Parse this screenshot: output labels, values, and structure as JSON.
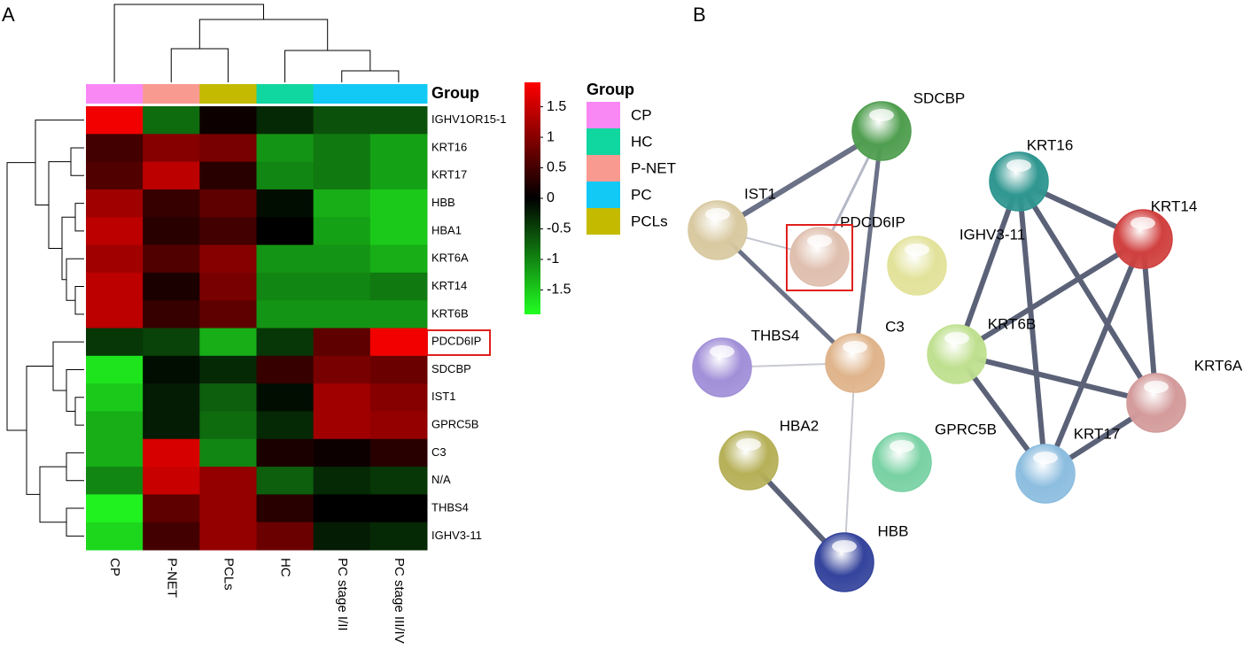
{
  "chart_data": {
    "type": "heatmap",
    "panel": "A",
    "columns": [
      "CP",
      "P-NET",
      "PCLs",
      "HC",
      "PC stage I/II",
      "PC stage III/IV"
    ],
    "column_group": [
      "CP",
      "P-NET",
      "PCLs",
      "HC",
      "PC",
      "PC"
    ],
    "rows": [
      "IGHV1OR15-1",
      "KRT16",
      "KRT17",
      "HBB",
      "HBA1",
      "KRT6A",
      "KRT14",
      "KRT6B",
      "PDCD6IP",
      "SDCBP",
      "IST1",
      "GPRC5B",
      "C3",
      "N/A",
      "THBS4",
      "IGHV3-11"
    ],
    "values": [
      [
        1.8,
        -0.8,
        0.1,
        -0.3,
        -0.6,
        -0.6
      ],
      [
        0.5,
        1.0,
        0.9,
        -1.1,
        -0.9,
        -1.2
      ],
      [
        0.6,
        1.4,
        0.3,
        -1.0,
        -0.9,
        -1.2
      ],
      [
        1.2,
        0.4,
        0.7,
        -0.1,
        -1.3,
        -1.5
      ],
      [
        1.4,
        0.3,
        0.5,
        0.0,
        -1.2,
        -1.5
      ],
      [
        1.2,
        0.6,
        1.0,
        -1.1,
        -1.1,
        -1.3
      ],
      [
        1.4,
        0.2,
        0.9,
        -1.0,
        -1.0,
        -0.9
      ],
      [
        1.4,
        0.4,
        0.7,
        -1.1,
        -1.1,
        -1.1
      ],
      [
        -0.4,
        -0.5,
        -1.3,
        -0.4,
        0.7,
        1.8
      ],
      [
        -1.7,
        -0.1,
        -0.3,
        0.4,
        0.9,
        0.8
      ],
      [
        -1.5,
        -0.2,
        -0.7,
        -0.1,
        1.2,
        1.0
      ],
      [
        -1.3,
        -0.2,
        -0.8,
        -0.3,
        1.2,
        1.1
      ],
      [
        -1.3,
        1.6,
        -1.0,
        0.2,
        0.1,
        0.3
      ],
      [
        -1.0,
        1.5,
        1.1,
        -0.7,
        -0.3,
        -0.4
      ],
      [
        -1.8,
        0.7,
        1.1,
        0.3,
        0.0,
        0.0
      ],
      [
        -1.6,
        0.5,
        1.1,
        0.8,
        -0.2,
        -0.3
      ]
    ],
    "zlim": [
      -1.9,
      1.9
    ],
    "zticks": [
      1.5,
      1,
      0.5,
      0,
      -0.5,
      -1,
      -1.5
    ],
    "low_color": "#22ff22",
    "mid_color": "#000000",
    "high_color": "#ff0000",
    "group_label": "Group",
    "legend_title": "Group",
    "groups": [
      {
        "name": "CP",
        "color": "#f988f5"
      },
      {
        "name": "HC",
        "color": "#10d6a0"
      },
      {
        "name": "P-NET",
        "color": "#f99a90"
      },
      {
        "name": "PC",
        "color": "#12c9f6"
      },
      {
        "name": "PCLs",
        "color": "#c4bb00"
      }
    ]
  },
  "network": {
    "panel": "B",
    "nodes": [
      {
        "label": "SDCBP",
        "color": "#4f9e4f"
      },
      {
        "label": "KRT16",
        "color": "#2f9690"
      },
      {
        "label": "IST1",
        "color": "#d8c9a0"
      },
      {
        "label": "PDCD6IP",
        "color": "#dfbfae"
      },
      {
        "label": "IGHV3-11",
        "color": "#e2e29a"
      },
      {
        "label": "KRT14",
        "color": "#d0403f"
      },
      {
        "label": "KRT6B",
        "color": "#bfe08f"
      },
      {
        "label": "THBS4",
        "color": "#a18fd8"
      },
      {
        "label": "C3",
        "color": "#dfb48b"
      },
      {
        "label": "KRT6A",
        "color": "#d49b9b"
      },
      {
        "label": "HBA2",
        "color": "#b6b058"
      },
      {
        "label": "GPRC5B",
        "color": "#78d1a3"
      },
      {
        "label": "KRT17",
        "color": "#8cbddf"
      },
      {
        "label": "HBB",
        "color": "#34439c"
      }
    ]
  }
}
